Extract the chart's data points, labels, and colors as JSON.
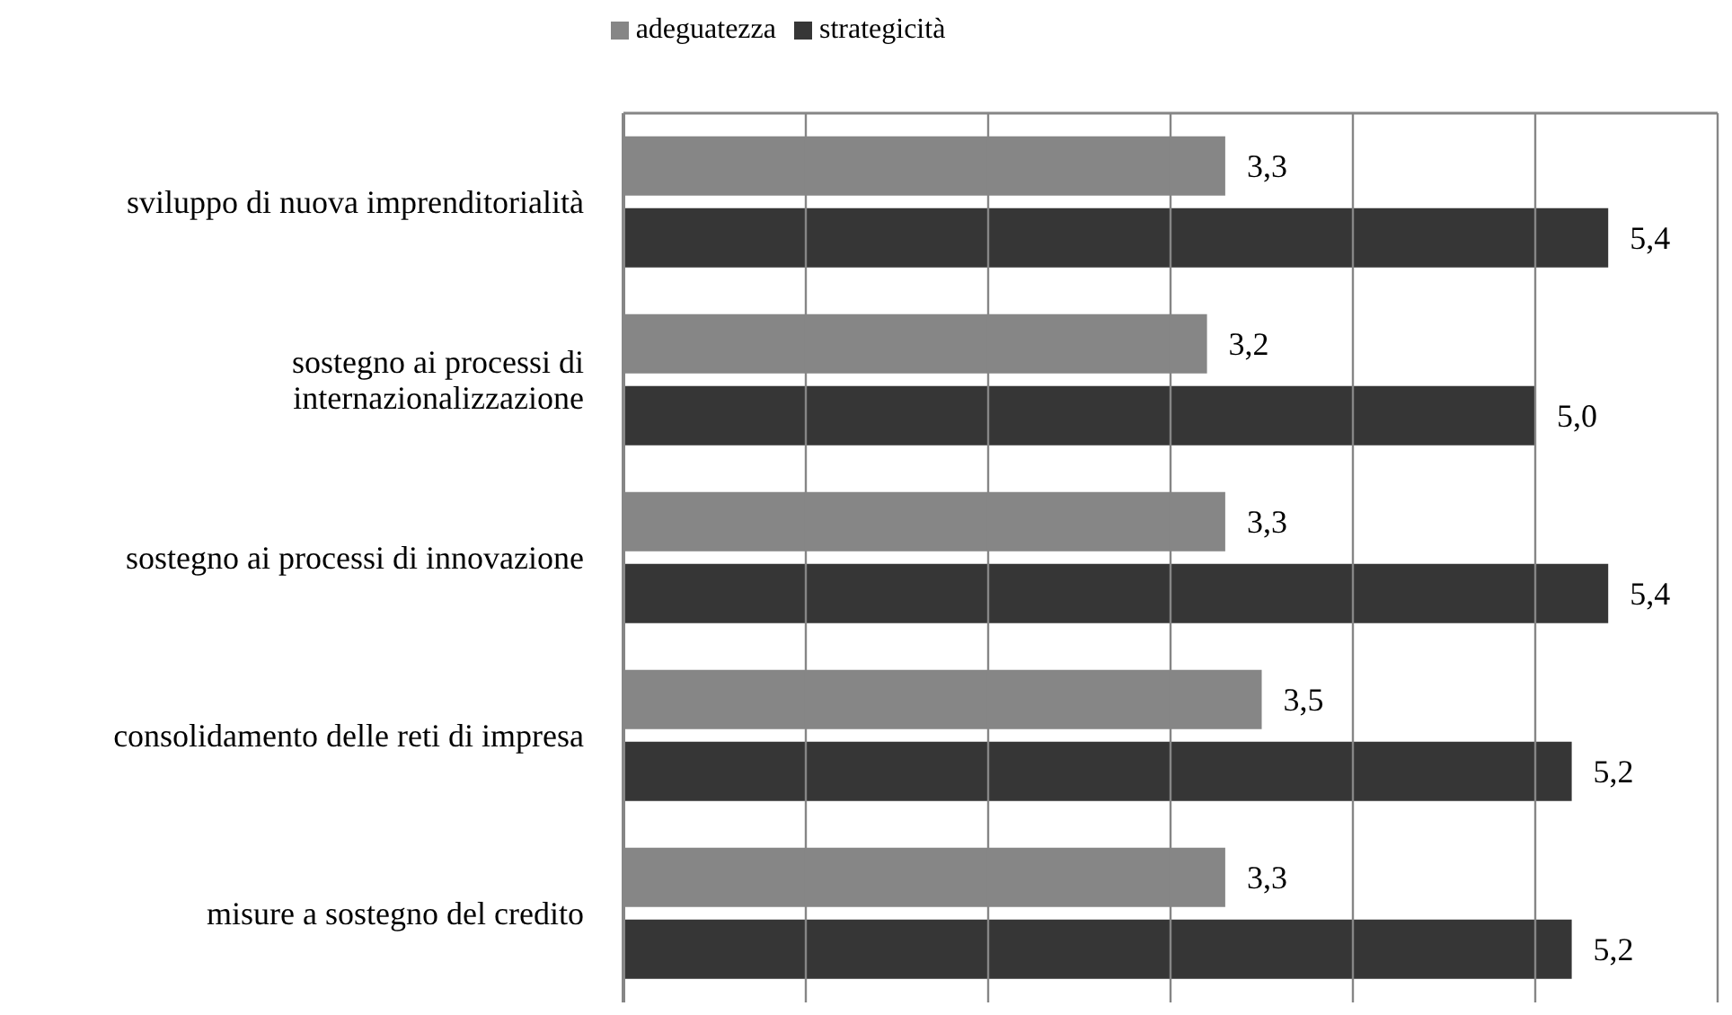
{
  "chart_data": {
    "type": "bar",
    "orientation": "horizontal",
    "categories": [
      "sviluppo di nuova imprenditorialità",
      "sostegno ai processi di internazionalizzazione",
      "sostegno ai processi di innovazione",
      "consolidamento delle reti di impresa",
      "misure a sostegno del credito"
    ],
    "series": [
      {
        "name": "adeguatezza",
        "color": "#868686",
        "values": [
          3.3,
          3.2,
          3.3,
          3.5,
          3.3
        ],
        "value_labels": [
          "3,3",
          "3,2",
          "3,3",
          "3,5",
          "3,3"
        ]
      },
      {
        "name": "strategicità",
        "color": "#363636",
        "values": [
          5.4,
          5.0,
          5.4,
          5.2,
          5.2
        ],
        "value_labels": [
          "5,4",
          "5,0",
          "5,4",
          "5,2",
          "5,2"
        ]
      }
    ],
    "xlim": [
      0,
      6
    ],
    "xticks": [
      {
        "value": 0,
        "label": null
      },
      {
        "value": 1,
        "label": null
      },
      {
        "value": 2,
        "label": null
      },
      {
        "value": 3,
        "label": null
      },
      {
        "value": 4,
        "label": null
      },
      {
        "value": 5,
        "label": null
      },
      {
        "value": 6,
        "label": null
      }
    ],
    "grid": "x",
    "legend": "top",
    "tick_labels": "y"
  }
}
